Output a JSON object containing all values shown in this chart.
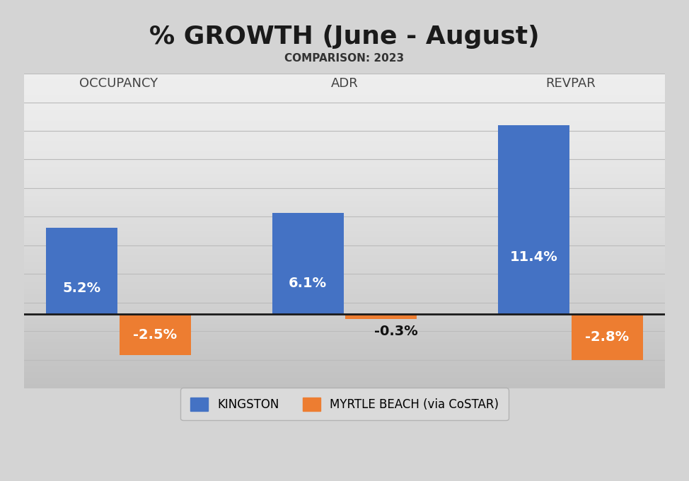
{
  "title": "% GROWTH (June - August)",
  "subtitle": "COMPARISON: 2023",
  "categories": [
    "OCCUPANCY",
    "ADR",
    "REVPAR"
  ],
  "kingston_values": [
    5.2,
    6.1,
    11.4
  ],
  "myrtle_values": [
    -2.5,
    -0.3,
    -2.8
  ],
  "kingston_color": "#4472C4",
  "myrtle_color": "#ED7D31",
  "background_color_top": "#D8D8D8",
  "background_color_mid": "#F2F2F2",
  "background_color_bot": "#D8D8D8",
  "title_fontsize": 26,
  "subtitle_fontsize": 11,
  "category_fontsize": 13,
  "bar_label_fontsize": 14,
  "legend_fontsize": 12,
  "ylim": [
    -4.5,
    14.5
  ],
  "bar_width": 0.38,
  "group_positions": [
    0.5,
    1.7,
    2.9
  ],
  "legend_labels": [
    "KINGSTON",
    "MYRTLE BEACH (via CoSTAR)"
  ]
}
